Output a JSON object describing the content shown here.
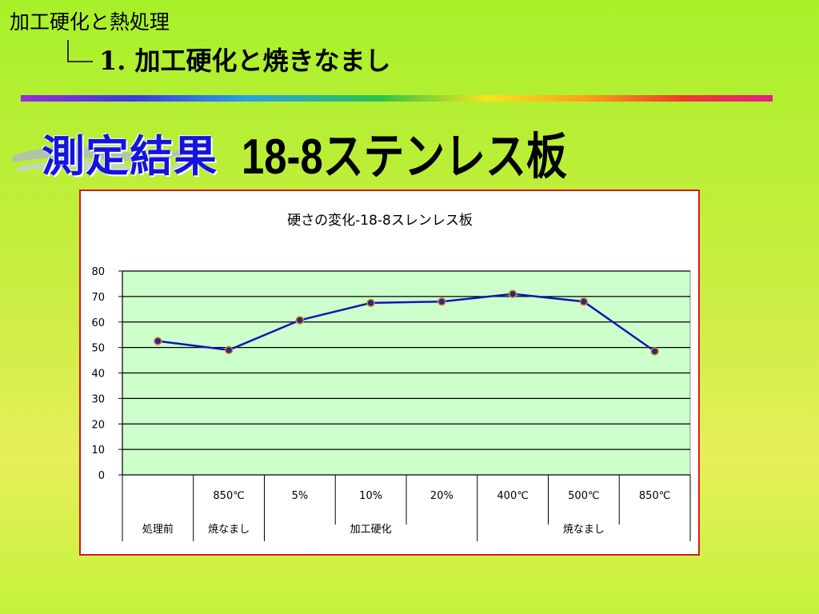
{
  "breadcrumb": {
    "top": "加工硬化と熱処理",
    "sub": "1. 加工硬化と焼きなまし"
  },
  "heading": {
    "left": "測定結果",
    "right": "18-8ステンレス板"
  },
  "colors": {
    "plot_bg": "#ccffcc",
    "line": "#1414b4",
    "marker_fill": "#2a2a8a",
    "marker_edge": "#e08a2a",
    "frame": "#d81818"
  },
  "chart_data": {
    "type": "line",
    "title": "硬さの変化-18-8スレンレス板",
    "ylim": [
      0,
      80
    ],
    "yticks": [
      0,
      10,
      20,
      30,
      40,
      50,
      60,
      70,
      80
    ],
    "grid": true,
    "categories": [
      "",
      "850℃",
      "5%",
      "10%",
      "20%",
      "400℃",
      "500℃",
      "850℃"
    ],
    "groups": [
      {
        "label": "処理前",
        "span": 1
      },
      {
        "label": "焼なまし",
        "span": 1
      },
      {
        "label": "加工硬化",
        "span": 3
      },
      {
        "label": "焼なまし",
        "span": 3
      }
    ],
    "series": [
      {
        "values": [
          52.5,
          49,
          60.7,
          67.5,
          68,
          71,
          68,
          48.5
        ]
      }
    ]
  }
}
